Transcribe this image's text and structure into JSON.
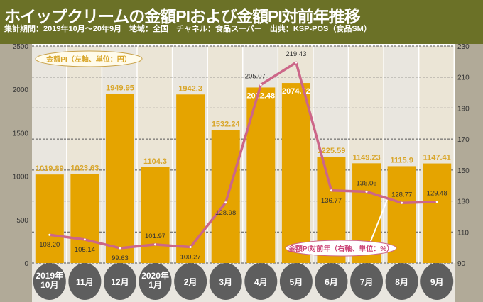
{
  "header": {
    "title": "ホイップクリームの金額PIおよび金額PI対前年推移",
    "subtitle": "集計期間：2019年10月～20年9月　地域：全国　チャネル：食品スーパー　出典：KSP-POS（食品SM）"
  },
  "chart_data": {
    "type": "bar+line",
    "categories": [
      "2019年\n10月",
      "11月",
      "12月",
      "2020年\n1月",
      "2月",
      "3月",
      "4月",
      "5月",
      "6月",
      "7月",
      "8月",
      "9月"
    ],
    "series": [
      {
        "name": "金額PI（左軸、単位：円）",
        "type": "bar",
        "axis": "left",
        "values": [
          1019.89,
          1023.63,
          1949.95,
          1104.3,
          1942.3,
          1532.24,
          2022.48,
          2074.72,
          1225.59,
          1149.23,
          1115.9,
          1147.41
        ],
        "labels": [
          "1019.89",
          "1023.63",
          "1949.95",
          "1104.3",
          "1942.3",
          "1532.24",
          "2022.48",
          "2074.72",
          "1225.59",
          "1149.23",
          "1115.9",
          "1147.41"
        ],
        "color": "#e5a400"
      },
      {
        "name": "金額PI対前年（右軸、単位：%）",
        "type": "line",
        "axis": "right",
        "values": [
          108.2,
          105.14,
          99.63,
          101.97,
          100.27,
          128.98,
          205.07,
          219.43,
          136.77,
          136.06,
          128.77,
          129.48
        ],
        "labels": [
          "108.20",
          "105.14",
          "99.63",
          "101.97",
          "100.27",
          "128.98",
          "205.07",
          "219.43",
          "136.77",
          "136.06",
          "128.77",
          "129.48"
        ],
        "color": "#cc6688"
      }
    ],
    "left_axis": {
      "ylim": [
        0,
        2500
      ],
      "ticks": [
        "0",
        "500",
        "1000",
        "1500",
        "2000",
        "2500"
      ]
    },
    "right_axis": {
      "ylim": [
        90,
        230
      ],
      "ticks": [
        "90",
        "110",
        "130",
        "150",
        "170",
        "190",
        "210",
        "230"
      ]
    },
    "grid": true
  }
}
